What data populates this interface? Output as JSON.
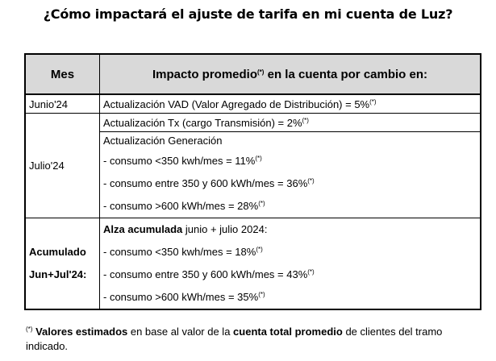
{
  "title": "¿Cómo impactará el ajuste de tarifa en mi cuenta de Luz?",
  "table": {
    "header": {
      "mes": "Mes",
      "impacto_prefix": "Impacto promedio",
      "impacto_sup": "(*)",
      "impacto_suffix": " en la cuenta por cambio en:"
    },
    "junio": {
      "mes": "Junio'24",
      "text": "Actualización VAD (Valor Agregado de Distribución) = 5%",
      "sup": "(*)"
    },
    "julio": {
      "mes": "Julio'24",
      "tx_text": "Actualización Tx (cargo Transmisión) = 2%",
      "tx_sup": "(*)",
      "gen_title": "Actualización Generación",
      "lines": [
        {
          "text": "- consumo <350 kwh/mes = 11%",
          "sup": "(*)"
        },
        {
          "text": "- consumo entre 350 y 600 kWh/mes = 36%",
          "sup": "(*)"
        },
        {
          "text": "- consumo >600 kWh/mes = 28%",
          "sup": "(*)"
        }
      ]
    },
    "acumulado": {
      "mes_line1": "Acumulado",
      "mes_line2": "Jun+Jul'24:",
      "title_bold": "Alza acumulada",
      "title_rest": " junio + julio 2024:",
      "lines": [
        {
          "text": "- consumo <350 kwh/mes = 18%",
          "sup": "(*)"
        },
        {
          "text": "- consumo entre 350 y 600 kWh/mes = 43%",
          "sup": "(*)"
        },
        {
          "text": "- consumo >600 kWh/mes = 35%",
          "sup": "(*)"
        }
      ]
    }
  },
  "footnote": {
    "sup": "(*)",
    "bold1": " Valores estimados",
    "text1": " en base al valor de la ",
    "bold2": "cuenta total promedio",
    "text2": " de clientes del tramo indicado."
  }
}
